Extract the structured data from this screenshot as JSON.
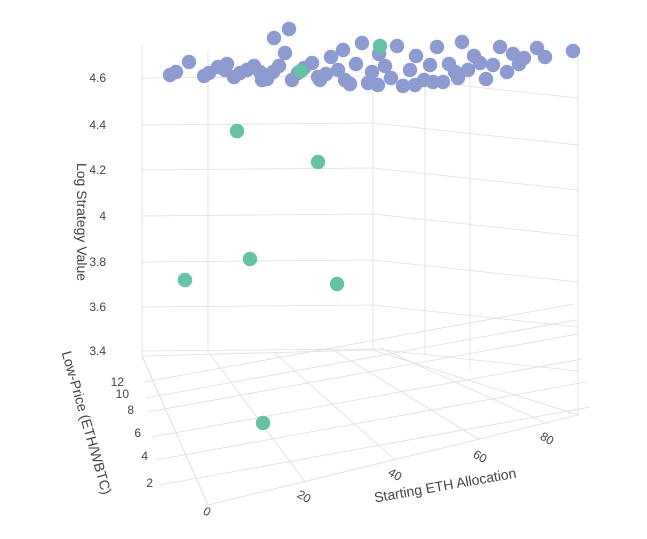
{
  "chart_data": {
    "type": "scatter3d",
    "title": "",
    "axes": {
      "x": {
        "title": "Starting ETH Allocation",
        "ticks": [
          "0",
          "20",
          "40",
          "60",
          "80"
        ]
      },
      "y": {
        "title": "Low-Price (ETH/WBTC)",
        "ticks": [
          "2",
          "4",
          "6",
          "8",
          "10",
          "12"
        ]
      },
      "z": {
        "title": "Log Strategy Value",
        "ticks": [
          "3.4",
          "3.6",
          "3.8",
          "4",
          "4.2",
          "4.4",
          "4.6"
        ]
      }
    },
    "colors": {
      "primary": "#8e9bd1",
      "highlight": "#66c2a5"
    },
    "series": [
      {
        "color": "#8e9bd1",
        "points_note": "screen-estimated",
        "points": []
      }
    ]
  }
}
